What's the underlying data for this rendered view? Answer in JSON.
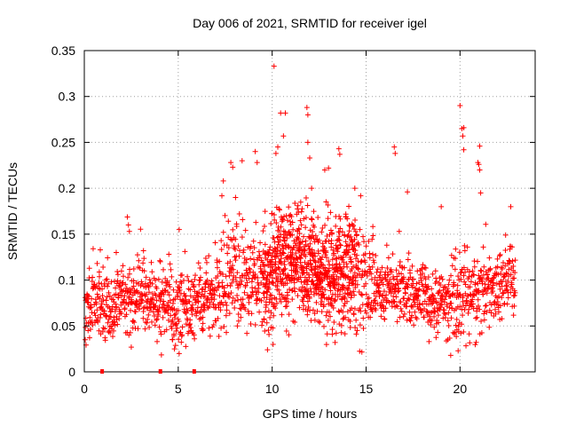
{
  "chart_data": {
    "type": "scatter",
    "title": "Day 006 of 2021, SRMTID for receiver igel",
    "xlabel": "GPS time / hours",
    "ylabel": "SRMTID / TECUs",
    "xlim": [
      0,
      24
    ],
    "ylim": [
      0,
      0.35
    ],
    "xticks": [
      0,
      5,
      10,
      15,
      20
    ],
    "xtick_labels": [
      "0",
      "5",
      "10",
      "15",
      "20"
    ],
    "yticks": [
      0,
      0.05,
      0.1,
      0.15,
      0.2,
      0.25,
      0.3,
      0.35
    ],
    "ytick_labels": [
      "0",
      "0.05",
      "0.1",
      "0.15",
      "0.2",
      "0.25",
      "0.3",
      "0.35"
    ],
    "grid": true,
    "marker": "+",
    "color": "#ff0000",
    "gap_markers_x": [
      0.95,
      4.05,
      5.85
    ],
    "trend": [
      [
        0,
        0.06
      ],
      [
        0.5,
        0.075
      ],
      [
        1,
        0.072
      ],
      [
        1.5,
        0.07
      ],
      [
        2,
        0.078
      ],
      [
        2.5,
        0.082
      ],
      [
        3,
        0.08
      ],
      [
        3.5,
        0.075
      ],
      [
        4,
        0.072
      ],
      [
        4.5,
        0.068
      ],
      [
        5,
        0.065
      ],
      [
        5.5,
        0.068
      ],
      [
        6,
        0.072
      ],
      [
        6.5,
        0.078
      ],
      [
        7,
        0.088
      ],
      [
        7.5,
        0.095
      ],
      [
        8,
        0.1
      ],
      [
        8.5,
        0.102
      ],
      [
        9,
        0.1
      ],
      [
        9.5,
        0.098
      ],
      [
        10,
        0.105
      ],
      [
        10.5,
        0.122
      ],
      [
        11,
        0.125
      ],
      [
        11.5,
        0.118
      ],
      [
        12,
        0.11
      ],
      [
        12.5,
        0.105
      ],
      [
        13,
        0.1
      ],
      [
        13.5,
        0.108
      ],
      [
        14,
        0.112
      ],
      [
        14.5,
        0.105
      ],
      [
        15,
        0.095
      ],
      [
        15.5,
        0.09
      ],
      [
        16,
        0.088
      ],
      [
        16.5,
        0.092
      ],
      [
        17,
        0.09
      ],
      [
        17.5,
        0.085
      ],
      [
        18,
        0.08
      ],
      [
        18.5,
        0.078
      ],
      [
        19,
        0.08
      ],
      [
        19.5,
        0.078
      ],
      [
        20,
        0.085
      ],
      [
        20.5,
        0.088
      ],
      [
        21,
        0.085
      ],
      [
        21.5,
        0.09
      ],
      [
        22,
        0.095
      ],
      [
        22.5,
        0.098
      ],
      [
        23,
        0.095
      ]
    ],
    "spikes": [
      [
        10.1,
        0.333
      ],
      [
        10.45,
        0.282
      ],
      [
        10.7,
        0.282
      ],
      [
        11.85,
        0.288
      ],
      [
        11.9,
        0.28
      ],
      [
        10.3,
        0.245
      ],
      [
        10.2,
        0.238
      ],
      [
        10.6,
        0.257
      ],
      [
        9.1,
        0.24
      ],
      [
        9.2,
        0.228
      ],
      [
        7.8,
        0.228
      ],
      [
        7.9,
        0.223
      ],
      [
        8.4,
        0.23
      ],
      [
        13.55,
        0.243
      ],
      [
        13.6,
        0.237
      ],
      [
        13.0,
        0.222
      ],
      [
        12.8,
        0.22
      ],
      [
        16.5,
        0.245
      ],
      [
        16.55,
        0.238
      ],
      [
        20.0,
        0.29
      ],
      [
        20.1,
        0.265
      ],
      [
        20.2,
        0.266
      ],
      [
        20.15,
        0.257
      ],
      [
        20.2,
        0.242
      ],
      [
        21.05,
        0.246
      ],
      [
        20.95,
        0.228
      ],
      [
        21.0,
        0.226
      ],
      [
        21.05,
        0.22
      ],
      [
        11.9,
        0.25
      ],
      [
        12.0,
        0.233
      ],
      [
        7.4,
        0.208
      ],
      [
        8.05,
        0.19
      ],
      [
        12.1,
        0.2
      ],
      [
        14.4,
        0.2
      ],
      [
        17.2,
        0.196
      ],
      [
        19.0,
        0.18
      ],
      [
        21.1,
        0.195
      ],
      [
        22.7,
        0.18
      ],
      [
        2.35,
        0.16
      ],
      [
        2.4,
        0.153
      ],
      [
        5.05,
        0.155
      ],
      [
        0.85,
        0.133
      ],
      [
        1.7,
        0.13
      ],
      [
        3.15,
        0.132
      ],
      [
        4.05,
        0.12
      ],
      [
        2.5,
        0.027
      ],
      [
        5.05,
        0.02
      ],
      [
        4.8,
        0.025
      ],
      [
        9.75,
        0.024
      ],
      [
        10.05,
        0.03
      ],
      [
        13.35,
        0.032
      ],
      [
        18.35,
        0.033
      ],
      [
        19.35,
        0.035
      ],
      [
        0.05,
        0.035
      ],
      [
        0.2,
        0.045
      ],
      [
        19.9,
        0.023
      ],
      [
        4.7,
        0.035
      ],
      [
        6.3,
        0.045
      ]
    ]
  }
}
